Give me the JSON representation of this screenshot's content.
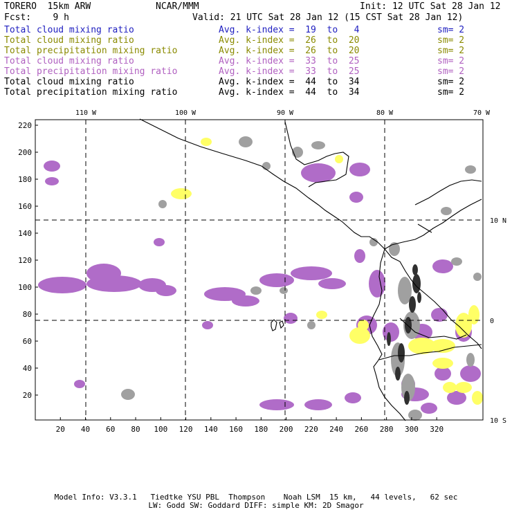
{
  "header": {
    "model": "TORERO  15km ARW",
    "org": "NCAR/MMM",
    "init": "Init: 12 UTC Sat 28 Jan 12",
    "fcst": "Fcst:    9 h",
    "valid": "Valid: 21 UTC Sat 28 Jan 12 (15 CST Sat 28 Jan 12)"
  },
  "legend": [
    {
      "field": "Total cloud mixing ratio",
      "kidx": "Avg. k-index =  19  to   4",
      "sm": "sm= 2",
      "color": "#2020c0"
    },
    {
      "field": "Total cloud mixing ratio",
      "kidx": "Avg. k-index =  26  to  20",
      "sm": "sm= 2",
      "color": "#8a8a00"
    },
    {
      "field": "Total precipitation mixing ratio",
      "kidx": "Avg. k-index =  26  to  20",
      "sm": "sm= 2",
      "color": "#8a8a00"
    },
    {
      "field": "Total cloud mixing ratio",
      "kidx": "Avg. k-index =  33  to  25",
      "sm": "sm= 2",
      "color": "#b060c0"
    },
    {
      "field": "Total precipitation mixing ratio",
      "kidx": "Avg. k-index =  33  to  25",
      "sm": "sm= 2",
      "color": "#b060c0"
    },
    {
      "field": "Total cloud mixing ratio",
      "kidx": "Avg. k-index =  44  to  34",
      "sm": "sm= 2",
      "color": "#000000"
    },
    {
      "field": "Total precipitation mixing ratio",
      "kidx": "Avg. k-index =  44  to  34",
      "sm": "sm= 2",
      "color": "#000000"
    }
  ],
  "map": {
    "lon_labels": [
      "110 W",
      "100 W",
      "90 W",
      "80 W",
      "70 W"
    ],
    "lat_labels": [
      "10 N",
      "0",
      "10 S"
    ],
    "x_ticks": [
      "20",
      "40",
      "60",
      "80",
      "100",
      "120",
      "140",
      "160",
      "180",
      "200",
      "220",
      "240",
      "260",
      "280",
      "300",
      "320"
    ],
    "y_ticks": [
      "220",
      "200",
      "180",
      "160",
      "140",
      "120",
      "100",
      "80",
      "60",
      "40",
      "20"
    ],
    "colors": {
      "purple": "#b06cc8",
      "yellow": "#ffff66",
      "gray": "#a0a0a0",
      "dark": "#303030"
    }
  },
  "footer": {
    "line1": "Model Info: V3.3.1   Tiedtke YSU PBL  Thompson    Noah LSM  15 km,   44 levels,   62 sec",
    "line2": "LW: Godd SW: Goddard DIFF: simple KM: 2D Smagor"
  }
}
